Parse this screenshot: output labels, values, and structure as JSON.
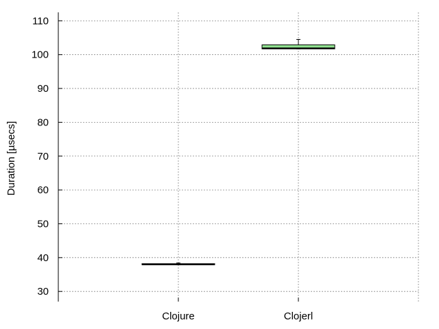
{
  "chart_data": {
    "type": "box",
    "ylabel": "Duration [µsecs]",
    "categories": [
      "Clojure",
      "Clojerl"
    ],
    "ylim": [
      27,
      112.5
    ],
    "yticks": [
      30,
      40,
      50,
      60,
      70,
      80,
      90,
      100,
      110
    ],
    "grid": true,
    "boxes": [
      {
        "category": "Clojure",
        "min": 37.9,
        "q1": 38.0,
        "median": 38.0,
        "q3": 38.2,
        "max": 38.4,
        "fill": "#2b2bb8"
      },
      {
        "category": "Clojerl",
        "min": 101.7,
        "q1": 101.7,
        "median": 101.9,
        "q3": 102.9,
        "max": 104.5,
        "fill": "#90e090"
      }
    ]
  }
}
